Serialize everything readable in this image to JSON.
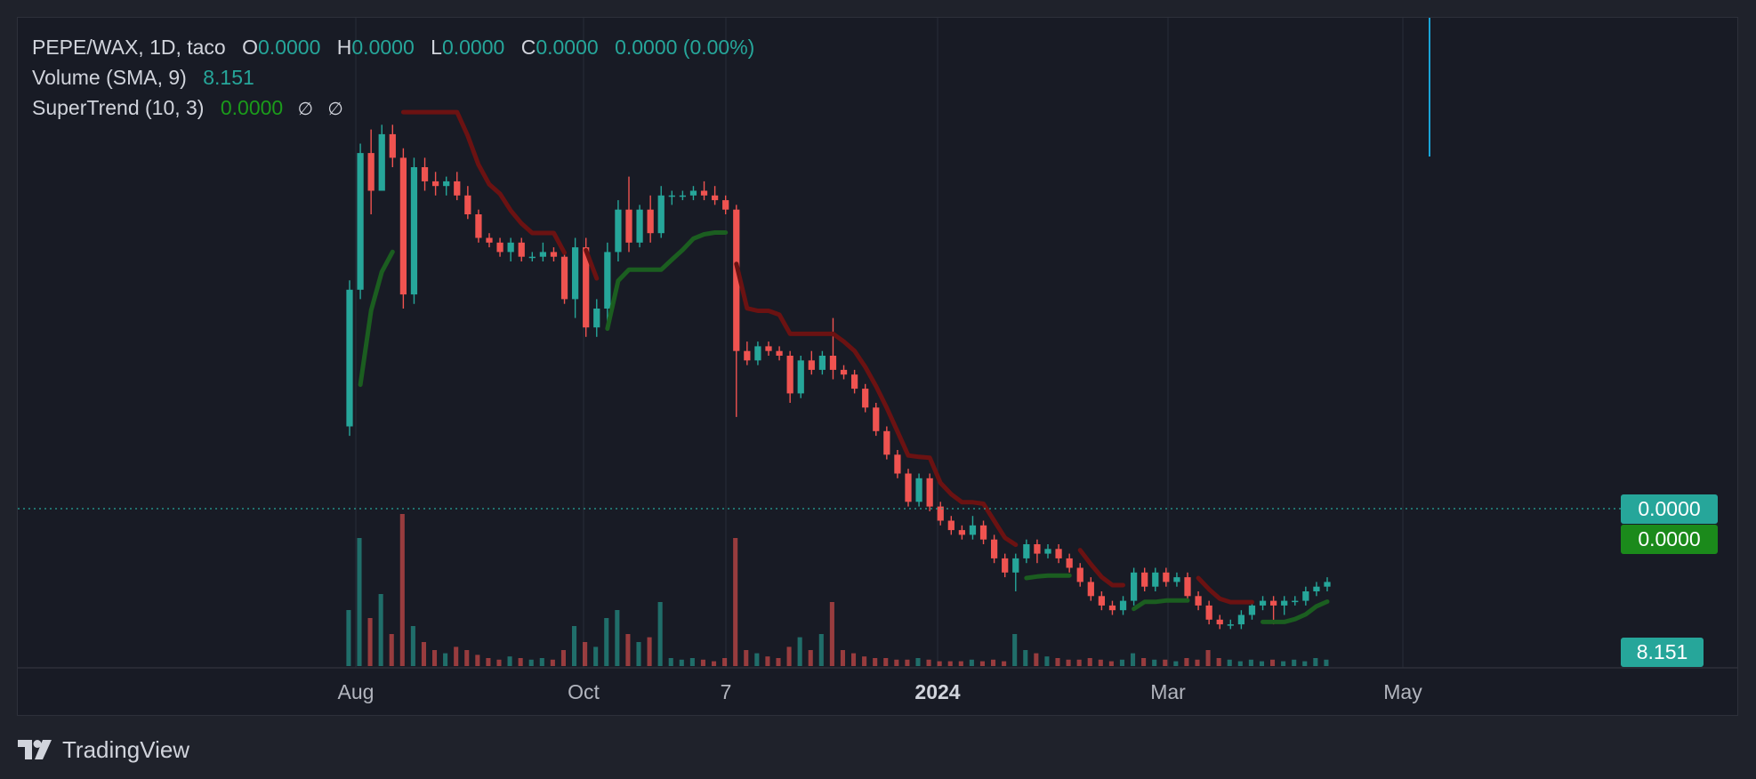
{
  "legend": {
    "symbol": "PEPE/WAX, 1D, taco",
    "o_label": "O",
    "o_value": "0.0000",
    "h_label": "H",
    "h_value": "0.0000",
    "l_label": "L",
    "l_value": "0.0000",
    "c_label": "C",
    "c_value": "0.0000",
    "change": "0.0000 (0.00%)",
    "volume_label": "Volume (SMA, 9)",
    "volume_value": "8.151",
    "supertrend_label": "SuperTrend (10, 3)",
    "supertrend_value": "0.0000",
    "supertrend_icons": [
      "∅",
      "∅"
    ]
  },
  "price_tags": {
    "last_price": "0.0000",
    "supertrend_price": "0.0000",
    "volume": "8.151"
  },
  "x_axis": [
    {
      "label": "Aug",
      "bold": false
    },
    {
      "label": "Oct",
      "bold": false
    },
    {
      "label": "7",
      "bold": false
    },
    {
      "label": "2024",
      "bold": true
    },
    {
      "label": "Mar",
      "bold": false
    },
    {
      "label": "May",
      "bold": false
    }
  ],
  "brand": {
    "name": "TradingView"
  },
  "colors": {
    "up": "#26a69a",
    "down": "#ef5350",
    "supertrend_up": "#1b5e20",
    "supertrend_down": "#6b1212",
    "last_price_tag": "#26a69a",
    "supertrend_tag": "#1b8a1b",
    "background": "#181b25"
  },
  "chart_data": {
    "type": "candlestick",
    "symbol": "PEPE/WAX",
    "interval": "1D",
    "x_range": [
      "2023-07-01",
      "2024-06-07"
    ],
    "y_scale": "relative (price values display as 0.0000)",
    "grid": true,
    "candles_ohlc_relative": [
      [
        0.35,
        0.66,
        0.33,
        0.64
      ],
      [
        0.64,
        0.95,
        0.62,
        0.93
      ],
      [
        0.93,
        0.98,
        0.8,
        0.85
      ],
      [
        0.85,
        0.99,
        0.88,
        0.97
      ],
      [
        0.97,
        0.99,
        0.9,
        0.92
      ],
      [
        0.92,
        0.94,
        0.6,
        0.63
      ],
      [
        0.63,
        0.92,
        0.61,
        0.9
      ],
      [
        0.9,
        0.92,
        0.85,
        0.87
      ],
      [
        0.87,
        0.89,
        0.84,
        0.86
      ],
      [
        0.86,
        0.88,
        0.84,
        0.87
      ],
      [
        0.87,
        0.89,
        0.83,
        0.84
      ],
      [
        0.84,
        0.86,
        0.79,
        0.8
      ],
      [
        0.8,
        0.81,
        0.74,
        0.75
      ],
      [
        0.75,
        0.76,
        0.73,
        0.74
      ],
      [
        0.74,
        0.75,
        0.71,
        0.72
      ],
      [
        0.72,
        0.75,
        0.7,
        0.74
      ],
      [
        0.74,
        0.75,
        0.7,
        0.71
      ],
      [
        0.71,
        0.72,
        0.7,
        0.71
      ],
      [
        0.71,
        0.74,
        0.7,
        0.72
      ],
      [
        0.72,
        0.73,
        0.7,
        0.71
      ],
      [
        0.71,
        0.72,
        0.61,
        0.62
      ],
      [
        0.62,
        0.75,
        0.58,
        0.73
      ],
      [
        0.73,
        0.75,
        0.54,
        0.56
      ],
      [
        0.56,
        0.62,
        0.54,
        0.6
      ],
      [
        0.6,
        0.74,
        0.57,
        0.72
      ],
      [
        0.72,
        0.83,
        0.7,
        0.81
      ],
      [
        0.81,
        0.88,
        0.72,
        0.74
      ],
      [
        0.74,
        0.82,
        0.73,
        0.81
      ],
      [
        0.81,
        0.84,
        0.74,
        0.76
      ],
      [
        0.76,
        0.86,
        0.75,
        0.84
      ],
      [
        0.84,
        0.85,
        0.82,
        0.84
      ],
      [
        0.84,
        0.85,
        0.83,
        0.84
      ],
      [
        0.84,
        0.86,
        0.83,
        0.85
      ],
      [
        0.85,
        0.87,
        0.83,
        0.84
      ],
      [
        0.84,
        0.86,
        0.82,
        0.83
      ],
      [
        0.83,
        0.84,
        0.8,
        0.81
      ],
      [
        0.81,
        0.82,
        0.37,
        0.51
      ],
      [
        0.51,
        0.53,
        0.48,
        0.49
      ],
      [
        0.49,
        0.53,
        0.48,
        0.52
      ],
      [
        0.52,
        0.53,
        0.5,
        0.51
      ],
      [
        0.51,
        0.52,
        0.49,
        0.5
      ],
      [
        0.5,
        0.51,
        0.4,
        0.42
      ],
      [
        0.42,
        0.5,
        0.41,
        0.49
      ],
      [
        0.49,
        0.51,
        0.46,
        0.47
      ],
      [
        0.47,
        0.51,
        0.46,
        0.5
      ],
      [
        0.5,
        0.58,
        0.45,
        0.47
      ],
      [
        0.47,
        0.48,
        0.45,
        0.46
      ],
      [
        0.46,
        0.47,
        0.42,
        0.43
      ],
      [
        0.43,
        0.44,
        0.38,
        0.39
      ],
      [
        0.39,
        0.4,
        0.33,
        0.34
      ],
      [
        0.34,
        0.35,
        0.28,
        0.29
      ],
      [
        0.29,
        0.3,
        0.24,
        0.25
      ],
      [
        0.25,
        0.26,
        0.18,
        0.19
      ],
      [
        0.19,
        0.25,
        0.18,
        0.24
      ],
      [
        0.24,
        0.25,
        0.17,
        0.18
      ],
      [
        0.18,
        0.19,
        0.14,
        0.15
      ],
      [
        0.15,
        0.16,
        0.12,
        0.13
      ],
      [
        0.13,
        0.14,
        0.11,
        0.12
      ],
      [
        0.12,
        0.16,
        0.11,
        0.14
      ],
      [
        0.14,
        0.15,
        0.1,
        0.11
      ],
      [
        0.11,
        0.12,
        0.06,
        0.07
      ],
      [
        0.07,
        0.08,
        0.03,
        0.04
      ],
      [
        0.04,
        0.08,
        0.0,
        0.07
      ],
      [
        0.07,
        0.11,
        0.06,
        0.1
      ],
      [
        0.1,
        0.11,
        0.06,
        0.08
      ],
      [
        0.08,
        0.1,
        0.07,
        0.09
      ],
      [
        0.09,
        0.1,
        0.06,
        0.07
      ],
      [
        0.07,
        0.08,
        0.04,
        0.05
      ],
      [
        0.05,
        0.06,
        0.01,
        0.02
      ],
      [
        0.02,
        0.03,
        -0.02,
        -0.01
      ],
      [
        -0.01,
        0.0,
        -0.04,
        -0.03
      ],
      [
        -0.03,
        -0.02,
        -0.05,
        -0.04
      ],
      [
        -0.04,
        -0.01,
        -0.05,
        -0.02
      ],
      [
        -0.02,
        0.05,
        -0.03,
        0.04
      ],
      [
        0.04,
        0.05,
        0.0,
        0.01
      ],
      [
        0.01,
        0.05,
        0.0,
        0.04
      ],
      [
        0.04,
        0.05,
        0.01,
        0.02
      ],
      [
        0.02,
        0.04,
        0.01,
        0.03
      ],
      [
        0.03,
        0.04,
        -0.02,
        -0.01
      ],
      [
        -0.01,
        0.0,
        -0.04,
        -0.03
      ],
      [
        -0.03,
        -0.02,
        -0.07,
        -0.06
      ],
      [
        -0.06,
        -0.05,
        -0.08,
        -0.07
      ],
      [
        -0.07,
        -0.06,
        -0.08,
        -0.07
      ],
      [
        -0.07,
        -0.04,
        -0.08,
        -0.05
      ],
      [
        -0.05,
        -0.02,
        -0.06,
        -0.03
      ],
      [
        -0.03,
        -0.01,
        -0.04,
        -0.02
      ],
      [
        -0.02,
        -0.01,
        -0.07,
        -0.03
      ],
      [
        -0.03,
        -0.01,
        -0.05,
        -0.02
      ],
      [
        -0.02,
        -0.01,
        -0.03,
        -0.02
      ],
      [
        -0.02,
        0.01,
        -0.03,
        0.0
      ],
      [
        0.0,
        0.02,
        -0.01,
        0.01
      ],
      [
        0.01,
        0.03,
        0.0,
        0.02
      ]
    ],
    "volume_relative": [
      0.35,
      0.8,
      0.3,
      0.45,
      0.2,
      0.95,
      0.25,
      0.15,
      0.1,
      0.08,
      0.12,
      0.1,
      0.07,
      0.05,
      0.04,
      0.06,
      0.05,
      0.04,
      0.05,
      0.04,
      0.1,
      0.25,
      0.15,
      0.12,
      0.3,
      0.35,
      0.2,
      0.15,
      0.18,
      0.4,
      0.05,
      0.04,
      0.05,
      0.04,
      0.03,
      0.05,
      0.8,
      0.1,
      0.08,
      0.06,
      0.05,
      0.12,
      0.18,
      0.1,
      0.2,
      0.4,
      0.1,
      0.08,
      0.06,
      0.05,
      0.05,
      0.04,
      0.04,
      0.05,
      0.04,
      0.03,
      0.03,
      0.03,
      0.04,
      0.03,
      0.04,
      0.03,
      0.2,
      0.1,
      0.08,
      0.06,
      0.05,
      0.04,
      0.04,
      0.05,
      0.04,
      0.03,
      0.04,
      0.08,
      0.05,
      0.04,
      0.04,
      0.03,
      0.05,
      0.04,
      0.1,
      0.05,
      0.04,
      0.03,
      0.04,
      0.03,
      0.04,
      0.03,
      0.04,
      0.03,
      0.05,
      0.04
    ]
  }
}
